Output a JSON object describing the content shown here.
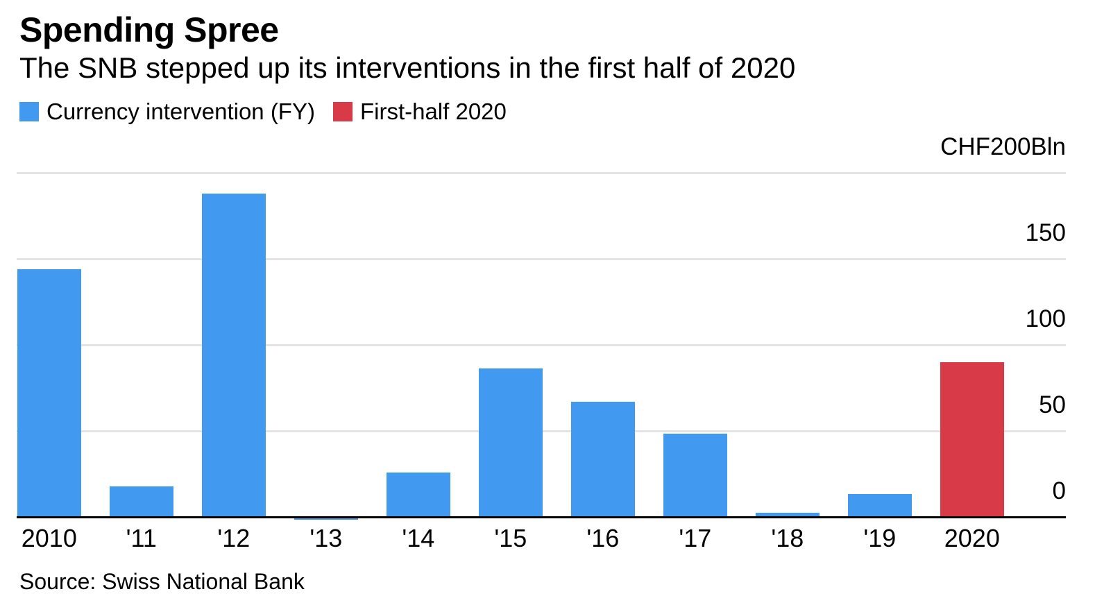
{
  "header": {
    "title": "Spending Spree",
    "subtitle": "The SNB stepped up its interventions in the first half of 2020"
  },
  "legend": [
    {
      "label": "Currency intervention (FY)",
      "color": "#4299F0"
    },
    {
      "label": "First-half 2020",
      "color": "#D93A47"
    }
  ],
  "source": "Source: Swiss National Bank",
  "chart_data": {
    "type": "bar",
    "title": "Spending Spree",
    "subtitle": "The SNB stepped up its interventions in the first half of 2020",
    "categories": [
      "2010",
      "'11",
      "'12",
      "'13",
      "'14",
      "'15",
      "'16",
      "'17",
      "'18",
      "'19",
      "2020"
    ],
    "series": [
      {
        "name": "Currency intervention (FY)",
        "color": "#4299F0",
        "values": [
          144,
          17.8,
          188,
          -1,
          25.8,
          86.1,
          67.1,
          48.2,
          2.3,
          13.2,
          null
        ]
      },
      {
        "name": "First-half 2020",
        "color": "#D93A47",
        "values": [
          null,
          null,
          null,
          null,
          null,
          null,
          null,
          null,
          null,
          null,
          90
        ]
      }
    ],
    "y_axis": {
      "top_label": "CHF200Bln",
      "min": 0,
      "max": 200,
      "gridline_values": [
        200,
        150,
        100,
        50
      ],
      "baseline_value": 0,
      "ticks": [
        {
          "value": 150,
          "label": "150"
        },
        {
          "value": 100,
          "label": "100"
        },
        {
          "value": 50,
          "label": "50"
        },
        {
          "value": 0,
          "label": "0"
        }
      ]
    },
    "grid": "horizontal",
    "legend_position": "top-left",
    "source": "Source: Swiss National Bank"
  }
}
